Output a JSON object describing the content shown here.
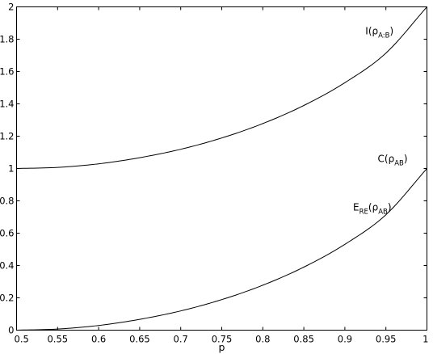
{
  "chart_data": {
    "type": "line",
    "title": "",
    "xlabel": "p",
    "ylabel": "",
    "xlim": [
      0.5,
      1
    ],
    "ylim": [
      0,
      2
    ],
    "grid": false,
    "xticks": [
      0.5,
      0.55,
      0.6,
      0.65,
      0.7,
      0.75,
      0.8,
      0.85,
      0.9,
      0.95,
      1
    ],
    "yticks": [
      0,
      0.2,
      0.4,
      0.6,
      0.8,
      1,
      1.2,
      1.4,
      1.6,
      1.8,
      2
    ],
    "xtick_labels": [
      "0.5",
      "0.55",
      "0.6",
      "0.65",
      "0.7",
      "0.75",
      "0.8",
      "0.85",
      "0.9",
      "0.95",
      "1"
    ],
    "ytick_labels": [
      "0",
      "0.2",
      "0.4",
      "0.6",
      "0.8",
      "1",
      "1.2",
      "1.4",
      "1.6",
      "1.8",
      "2"
    ],
    "annotations": [
      {
        "main": "I(ρ",
        "sub": "A:B",
        "close": ")",
        "x": 0.925,
        "y": 1.83
      },
      {
        "main": "C(ρ",
        "sub": "AB",
        "close": ")",
        "x": 0.94,
        "y": 1.04
      },
      {
        "main": "E",
        "sub": "RE",
        "close": "",
        "main2": "(ρ",
        "sub2": "AB",
        "close2": ")",
        "x": 0.91,
        "y": 0.74
      }
    ],
    "series": [
      {
        "x": [
          0.5,
          0.55,
          0.6,
          0.65,
          0.7,
          0.75,
          0.8,
          0.85,
          0.9,
          0.95,
          1.0
        ],
        "values": [
          1.0,
          1.007,
          1.029,
          1.067,
          1.119,
          1.189,
          1.278,
          1.39,
          1.531,
          1.714,
          2.0
        ]
      },
      {
        "x": [
          0.5,
          0.55,
          0.6,
          0.65,
          0.7,
          0.75,
          0.8,
          0.85,
          0.9,
          0.95,
          1.0
        ],
        "values": [
          0.0,
          0.007,
          0.029,
          0.067,
          0.119,
          0.189,
          0.278,
          0.39,
          0.531,
          0.714,
          1.0
        ]
      }
    ]
  }
}
